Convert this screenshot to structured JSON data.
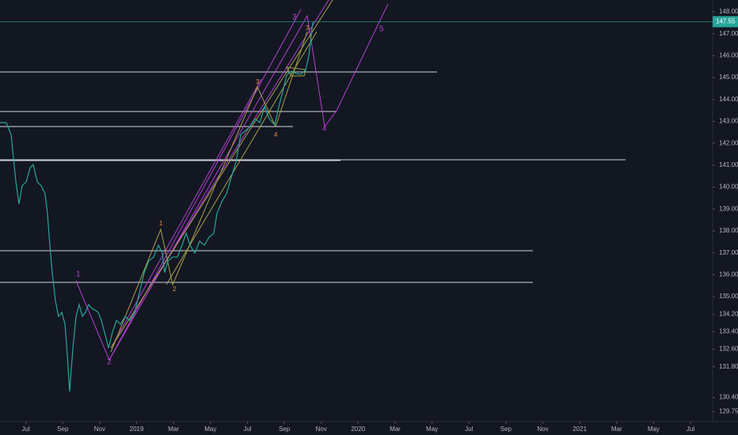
{
  "chart_data": {
    "type": "line",
    "x": [
      -1.4,
      -1.06,
      -0.8,
      -0.54,
      -0.37,
      -0.2,
      0.02,
      0.23,
      0.4,
      0.62,
      0.83,
      1.04,
      1.17,
      1.3,
      1.43,
      1.6,
      1.77,
      1.95,
      2.12,
      2.25,
      2.37,
      2.55,
      2.72,
      2.89,
      3.06,
      3.23,
      3.4,
      3.58,
      3.75,
      3.92,
      4.09,
      4.26,
      4.48,
      4.69,
      4.91,
      5.12,
      5.38,
      5.63,
      5.89,
      6.15,
      6.41,
      6.66,
      6.92,
      7.18,
      7.39,
      7.52,
      7.69,
      7.95,
      8.21,
      8.46,
      8.68,
      8.89,
      9.15,
      9.41,
      9.67,
      9.92,
      10.18,
      10.35,
      10.61,
      10.87,
      11.12,
      11.38,
      11.64,
      11.9,
      12.15,
      12.41,
      12.67,
      12.93,
      13.18,
      13.48,
      13.7,
      13.87,
      14.13,
      14.38,
      14.64,
      14.9,
      15.16,
      15.33,
      15.54
    ],
    "series": [
      {
        "color": "#26a69a",
        "values": [
          142.94,
          142.94,
          142.4,
          140.24,
          139.23,
          140.06,
          140.24,
          140.89,
          141.03,
          140.24,
          140.06,
          139.7,
          138.79,
          137.35,
          136.09,
          134.82,
          134.1,
          134.28,
          133.74,
          132.29,
          130.67,
          132.66,
          134.1,
          134.64,
          134.1,
          134.28,
          134.64,
          134.46,
          134.39,
          134.28,
          133.92,
          133.38,
          132.66,
          133.38,
          133.92,
          133.74,
          134.1,
          133.92,
          134.28,
          135.18,
          136.09,
          136.63,
          136.81,
          137.35,
          136.99,
          136.09,
          136.63,
          136.81,
          136.81,
          137.35,
          137.89,
          137.35,
          136.99,
          137.53,
          137.35,
          137.71,
          137.89,
          138.79,
          139.33,
          139.7,
          140.42,
          141.14,
          142.4,
          142.58,
          142.76,
          143.12,
          142.94,
          143.67,
          143.12,
          142.84,
          143.67,
          144.21,
          145.11,
          145.29,
          145.18,
          145.15,
          145.36,
          146.01,
          147.53
        ]
      }
    ],
    "xlim": [
      -1.4,
      37.2
    ],
    "xticks": [
      {
        "value": 0,
        "label": "Jul"
      },
      {
        "value": 2,
        "label": "Sep"
      },
      {
        "value": 4,
        "label": "Nov"
      },
      {
        "value": 6,
        "label": "2019"
      },
      {
        "value": 8,
        "label": "Mar"
      },
      {
        "value": 10,
        "label": "May"
      },
      {
        "value": 12,
        "label": "Jul"
      },
      {
        "value": 14,
        "label": "Sep"
      },
      {
        "value": 16,
        "label": "Nov"
      },
      {
        "value": 18,
        "label": "2020"
      },
      {
        "value": 20,
        "label": "Mar"
      },
      {
        "value": 22,
        "label": "May"
      },
      {
        "value": 24,
        "label": "Jul"
      },
      {
        "value": 26,
        "label": "Sep"
      },
      {
        "value": 28,
        "label": "Nov"
      },
      {
        "value": 30,
        "label": "2021"
      },
      {
        "value": 32,
        "label": "Mar"
      },
      {
        "value": 34,
        "label": "May"
      },
      {
        "value": 36,
        "label": "Jul"
      }
    ],
    "ylim": [
      129.3,
      148.54
    ],
    "yticks": [
      {
        "value": 148,
        "label": "148.00"
      },
      {
        "value": 147,
        "label": "147.00"
      },
      {
        "value": 146,
        "label": "146.00"
      },
      {
        "value": 145,
        "label": "145.00"
      },
      {
        "value": 144,
        "label": "144.00"
      },
      {
        "value": 143,
        "label": "143.00"
      },
      {
        "value": 142,
        "label": "142.00"
      },
      {
        "value": 141,
        "label": "141.00"
      },
      {
        "value": 140,
        "label": "140.00"
      },
      {
        "value": 139,
        "label": "139.00"
      },
      {
        "value": 138,
        "label": "138.00"
      },
      {
        "value": 137,
        "label": "137.00"
      },
      {
        "value": 136,
        "label": "136.00"
      },
      {
        "value": 135,
        "label": "135.00"
      },
      {
        "value": 134.2,
        "label": "134.20"
      },
      {
        "value": 133.4,
        "label": "133.40"
      },
      {
        "value": 132.6,
        "label": "132.60"
      },
      {
        "value": 131.8,
        "label": "131.80"
      },
      {
        "value": 130.4,
        "label": "130.40"
      },
      {
        "value": 129.75,
        "label": "129.75"
      }
    ],
    "last_price": 147.55,
    "last_price_color": "#26a69a",
    "grid": false,
    "wave_labels_major": [
      "1",
      "2",
      "3",
      "4",
      "5"
    ],
    "wave_labels_minor": [
      "1",
      "2",
      "3",
      "4",
      "3"
    ]
  }
}
